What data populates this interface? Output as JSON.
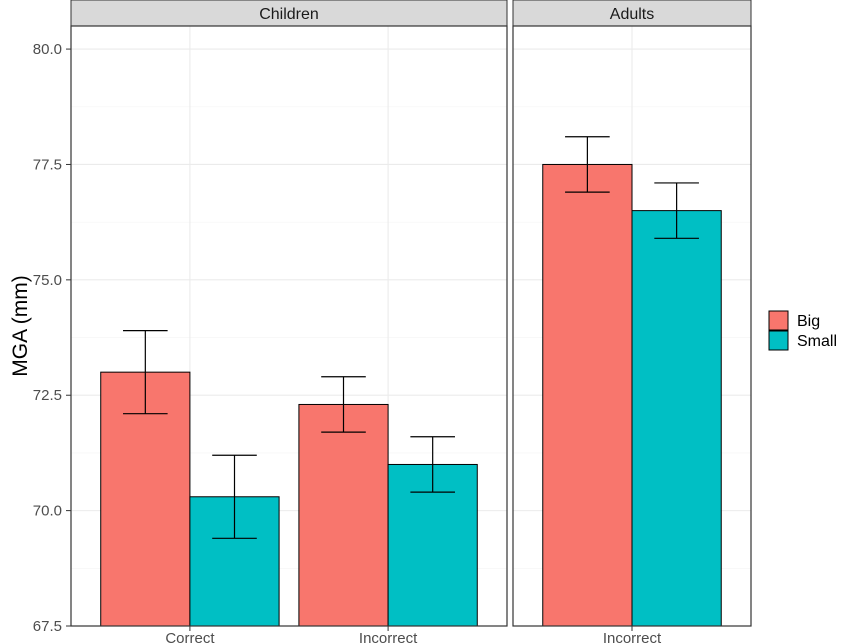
{
  "chart_data": {
    "type": "bar",
    "ylabel": "MGA (mm)",
    "xlabel": "",
    "ylim": [
      67.5,
      80.5
    ],
    "yticks": [
      "67.5",
      "70.0",
      "72.5",
      "75.0",
      "77.5",
      "80.0"
    ],
    "grid": true,
    "legend_position": "right",
    "colors": {
      "Big": "#F8766D",
      "Small": "#00BFC4"
    },
    "legend": [
      {
        "name": "Big",
        "color": "#F8766D"
      },
      {
        "name": "Small",
        "color": "#00BFC4"
      }
    ],
    "panels": [
      {
        "title": "Children",
        "categories": [
          "Correct",
          "Incorrect"
        ],
        "series": [
          {
            "name": "Big",
            "values": [
              73.0,
              72.3
            ],
            "error_low": [
              72.1,
              71.7
            ],
            "error_high": [
              73.9,
              72.9
            ]
          },
          {
            "name": "Small",
            "values": [
              70.3,
              71.0
            ],
            "error_low": [
              69.4,
              70.4
            ],
            "error_high": [
              71.2,
              71.6
            ]
          }
        ]
      },
      {
        "title": "Adults",
        "categories": [
          "Incorrect"
        ],
        "series": [
          {
            "name": "Big",
            "values": [
              77.5
            ],
            "error_low": [
              76.9
            ],
            "error_high": [
              78.1
            ]
          },
          {
            "name": "Small",
            "values": [
              76.5
            ],
            "error_low": [
              75.9
            ],
            "error_high": [
              77.1
            ]
          }
        ]
      }
    ]
  }
}
